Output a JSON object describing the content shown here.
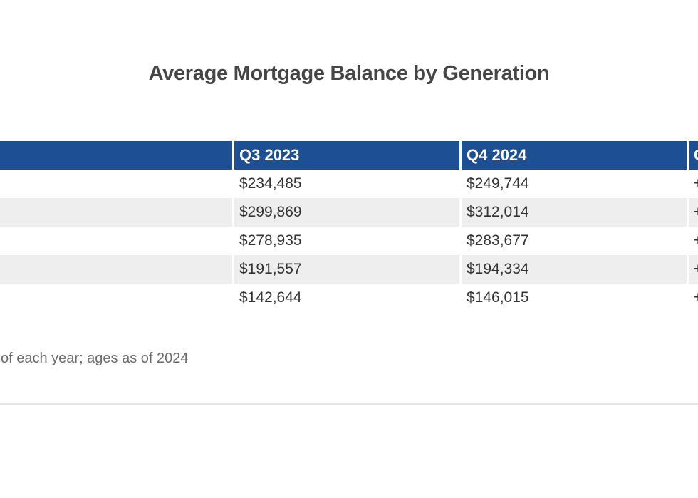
{
  "page": {
    "title": "Average Mortgage Balance by Generation",
    "footnote_visible": "of each year; ages as of 2024"
  },
  "table": {
    "headers": [
      "",
      "Q3 2023",
      "Q4 2024",
      "Change"
    ],
    "rows": [
      {
        "label": "",
        "q3": "$234,485",
        "q4": "$249,744",
        "change": "+"
      },
      {
        "label": "",
        "q3": "$299,869",
        "q4": "$312,014",
        "change": "+"
      },
      {
        "label": "",
        "q3": "$278,935",
        "q4": "$283,677",
        "change": "+"
      },
      {
        "label": "",
        "q3": "$191,557",
        "q4": "$194,334",
        "change": "+"
      },
      {
        "label": "",
        "q3": "$142,644",
        "q4": "$146,015",
        "change": "+"
      }
    ]
  },
  "chart_data": {
    "type": "table",
    "title": "Average Mortgage Balance by Generation",
    "columns": [
      "",
      "Q3 2023",
      "Q4 2024",
      "Change"
    ],
    "series": [
      {
        "name": "Q3 2023",
        "values": [
          234485,
          299869,
          278935,
          191557,
          142644
        ]
      },
      {
        "name": "Q4 2024",
        "values": [
          249744,
          312014,
          283677,
          194334,
          146015
        ]
      }
    ],
    "cells": [
      [
        "",
        "$234,485",
        "$249,744",
        "+"
      ],
      [
        "",
        "$299,869",
        "$312,014",
        "+"
      ],
      [
        "",
        "$278,935",
        "$283,677",
        "+"
      ],
      [
        "",
        "$191,557",
        "$194,334",
        "+"
      ],
      [
        "",
        "$142,644",
        "$146,015",
        "+"
      ]
    ],
    "layout_hints": "Row-label column cropped off left edge of image; Change column cropped at right edge (only leading '+' signs and the start of the header are visible). Alternating row stripes.",
    "footnote_visible": "of each year; ages as of 2024"
  },
  "colors": {
    "header_bg": "#1D4F94",
    "header_text": "#FFFFFF",
    "row_stripe": "#EEEEEE",
    "cell_text": "#333333",
    "title_text": "#454545",
    "footnote_text": "#6B6B6B",
    "divider": "#E4E4E4"
  }
}
